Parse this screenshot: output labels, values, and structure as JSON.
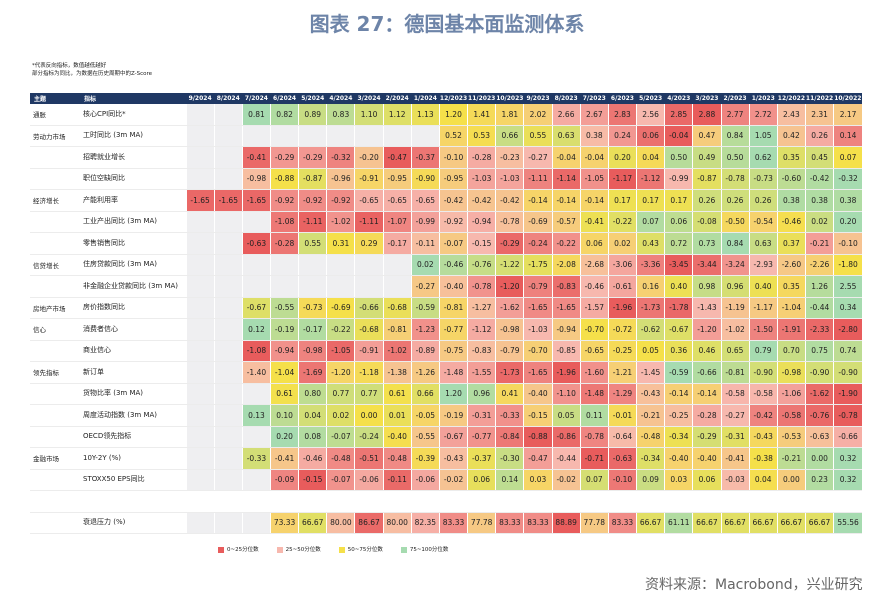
{
  "header": {
    "title": "图表 27：德国基本面监测体系"
  },
  "notes": [
    "*代表反向指标，数值越低越好",
    "部分指标为同比，为数据在历史周期中的Z-Score"
  ],
  "table": {
    "columns": [
      "主题",
      "指标"
    ],
    "dates": [
      "9/2024",
      "8/2024",
      "7/2024",
      "6/2024",
      "5/2024",
      "4/2024",
      "3/2024",
      "2/2024",
      "1/2024",
      "12/2023",
      "11/2023",
      "10/2023",
      "9/2023",
      "8/2023",
      "7/2023",
      "6/2023",
      "5/2023",
      "4/2023",
      "3/2023",
      "2/2023",
      "1/2023",
      "12/2022",
      "11/2022",
      "10/2022"
    ],
    "rows": [
      {
        "theme": "通胀",
        "indicator": "核心CPI同比*",
        "reverse": true,
        "values": [
          null,
          null,
          "0.81",
          "0.82",
          "0.89",
          "0.83",
          "1.10",
          "1.12",
          "1.13",
          "1.20",
          "1.41",
          "1.81",
          "2.02",
          "2.66",
          "2.67",
          "2.83",
          "2.56",
          "2.85",
          "2.88",
          "2.77",
          "2.72",
          "2.43",
          "2.31",
          "2.17"
        ]
      },
      {
        "theme": "劳动力市场",
        "indicator": "工时同比 (3m MA)",
        "values": [
          null,
          null,
          null,
          null,
          null,
          null,
          null,
          null,
          null,
          "0.52",
          "0.53",
          "0.66",
          "0.55",
          "0.63",
          "0.38",
          "0.24",
          "0.06",
          "-0.04",
          "0.47",
          "0.84",
          "1.05",
          "0.42",
          "0.26",
          "0.14"
        ]
      },
      {
        "theme": null,
        "indicator": "招聘就业增长",
        "values": [
          null,
          null,
          "-0.41",
          "-0.29",
          "-0.29",
          "-0.32",
          "-0.20",
          "-0.47",
          "-0.37",
          "-0.10",
          "-0.28",
          "-0.23",
          "-0.27",
          "-0.04",
          "-0.04",
          "0.20",
          "0.04",
          "0.50",
          "0.49",
          "0.50",
          "0.62",
          "0.35",
          "0.45",
          "0.07"
        ]
      },
      {
        "theme": null,
        "indicator": "职位空缺同比",
        "values": [
          null,
          null,
          "-0.98",
          "-0.88",
          "-0.87",
          "-0.96",
          "-0.91",
          "-0.95",
          "-0.90",
          "-0.95",
          "-1.03",
          "-1.03",
          "-1.11",
          "-1.14",
          "-1.05",
          "-1.17",
          "-1.12",
          "-0.99",
          "-0.87",
          "-0.78",
          "-0.73",
          "-0.60",
          "-0.42",
          "-0.32"
        ]
      },
      {
        "theme": "经济增长",
        "indicator": "产能利用率",
        "values": [
          "-1.65",
          "-1.65",
          "-1.65",
          "-0.92",
          "-0.92",
          "-0.92",
          "-0.65",
          "-0.65",
          "-0.65",
          "-0.42",
          "-0.42",
          "-0.42",
          "-0.14",
          "-0.14",
          "-0.14",
          "0.17",
          "0.17",
          "0.17",
          "0.26",
          "0.26",
          "0.26",
          "0.38",
          "0.38",
          "0.38"
        ]
      },
      {
        "theme": null,
        "indicator": "工业产出同比 (3m MA)",
        "values": [
          null,
          null,
          null,
          "-1.08",
          "-1.11",
          "-1.02",
          "-1.11",
          "-1.07",
          "-0.99",
          "-0.92",
          "-0.94",
          "-0.78",
          "-0.69",
          "-0.57",
          "-0.41",
          "-0.22",
          "0.07",
          "0.06",
          "-0.08",
          "-0.50",
          "-0.54",
          "-0.46",
          "0.02",
          "0.20"
        ]
      },
      {
        "theme": null,
        "indicator": "零售销售同比",
        "values": [
          null,
          null,
          "-0.63",
          "-0.28",
          "0.55",
          "0.31",
          "0.29",
          "-0.17",
          "-0.11",
          "-0.07",
          "-0.15",
          "-0.29",
          "-0.24",
          "-0.22",
          "0.06",
          "0.02",
          "0.43",
          "0.72",
          "0.73",
          "0.84",
          "0.63",
          "0.37",
          "-0.21",
          "-0.10"
        ]
      },
      {
        "theme": "信贷增长",
        "indicator": "住房贷款同比 (3m MA)",
        "values": [
          null,
          null,
          null,
          null,
          null,
          null,
          null,
          null,
          "0.02",
          "-0.46",
          "-0.76",
          "-1.22",
          "-1.75",
          "-2.08",
          "-2.68",
          "-3.06",
          "-3.36",
          "-3.45",
          "-3.44",
          "-3.24",
          "-2.93",
          "-2.60",
          "-2.26",
          "-1.80"
        ]
      },
      {
        "theme": null,
        "indicator": "非金融企业贷款同比 (3m MA)",
        "values": [
          null,
          null,
          null,
          null,
          null,
          null,
          null,
          null,
          "-0.27",
          "-0.40",
          "-0.78",
          "-1.20",
          "-0.79",
          "-0.83",
          "-0.46",
          "-0.61",
          "0.16",
          "0.40",
          "0.98",
          "0.96",
          "0.40",
          "0.35",
          "1.26",
          "2.55"
        ]
      },
      {
        "theme": "房地产市场",
        "indicator": "房价指数同比",
        "values": [
          null,
          null,
          "-0.67",
          "-0.55",
          "-0.73",
          "-0.69",
          "-0.66",
          "-0.68",
          "-0.59",
          "-0.81",
          "-1.27",
          "-1.62",
          "-1.65",
          "-1.65",
          "-1.57",
          "-1.96",
          "-1.73",
          "-1.78",
          "-1.43",
          "-1.19",
          "-1.17",
          "-1.04",
          "-0.44",
          "0.34"
        ]
      },
      {
        "theme": "信心",
        "indicator": "消费者信心",
        "values": [
          null,
          null,
          "0.12",
          "-0.19",
          "-0.17",
          "-0.22",
          "-0.68",
          "-0.81",
          "-1.23",
          "-0.77",
          "-1.12",
          "-0.98",
          "-1.03",
          "-0.94",
          "-0.70",
          "-0.72",
          "-0.62",
          "-0.67",
          "-1.20",
          "-1.02",
          "-1.50",
          "-1.91",
          "-2.33",
          "-2.80"
        ]
      },
      {
        "theme": null,
        "indicator": "商业信心",
        "values": [
          null,
          null,
          "-1.08",
          "-0.94",
          "-0.98",
          "-1.05",
          "-0.91",
          "-1.02",
          "-0.89",
          "-0.75",
          "-0.83",
          "-0.79",
          "-0.70",
          "-0.85",
          "-0.65",
          "-0.25",
          "0.05",
          "0.36",
          "0.46",
          "0.65",
          "0.79",
          "0.70",
          "0.75",
          "0.74"
        ]
      },
      {
        "theme": "领先指标",
        "indicator": "新订单",
        "values": [
          null,
          null,
          "-1.40",
          "-1.04",
          "-1.69",
          "-1.20",
          "-1.18",
          "-1.38",
          "-1.26",
          "-1.48",
          "-1.55",
          "-1.73",
          "-1.65",
          "-1.96",
          "-1.60",
          "-1.21",
          "-1.45",
          "-0.59",
          "-0.66",
          "-0.81",
          "-0.90",
          "-0.98",
          "-0.90",
          "-0.90"
        ]
      },
      {
        "theme": null,
        "indicator": "货物比率 (3m MA)",
        "values": [
          null,
          null,
          null,
          "0.61",
          "0.80",
          "0.77",
          "0.77",
          "0.61",
          "0.66",
          "1.20",
          "0.96",
          "0.41",
          "-0.40",
          "-1.10",
          "-1.48",
          "-1.29",
          "-0.43",
          "-0.14",
          "-0.14",
          "-0.58",
          "-0.58",
          "-1.06",
          "-1.62",
          "-1.90"
        ]
      },
      {
        "theme": null,
        "indicator": "周度活动指数 (3m MA)",
        "values": [
          null,
          null,
          "0.13",
          "0.10",
          "0.04",
          "0.02",
          "0.00",
          "0.01",
          "-0.05",
          "-0.19",
          "-0.31",
          "-0.33",
          "-0.15",
          "0.05",
          "0.11",
          "-0.01",
          "-0.21",
          "-0.25",
          "-0.28",
          "-0.27",
          "-0.42",
          "-0.58",
          "-0.76",
          "-0.78"
        ]
      },
      {
        "theme": null,
        "indicator": "OECD领先指标",
        "values": [
          null,
          null,
          null,
          "0.20",
          "0.08",
          "-0.07",
          "-0.24",
          "-0.40",
          "-0.55",
          "-0.67",
          "-0.77",
          "-0.84",
          "-0.88",
          "-0.86",
          "-0.78",
          "-0.64",
          "-0.48",
          "-0.34",
          "-0.29",
          "-0.31",
          "-0.43",
          "-0.53",
          "-0.63",
          "-0.66"
        ]
      },
      {
        "theme": "金融市场",
        "indicator": "10Y-2Y (%)",
        "values": [
          null,
          null,
          "-0.33",
          "-0.41",
          "-0.46",
          "-0.48",
          "-0.51",
          "-0.48",
          "-0.39",
          "-0.43",
          "-0.37",
          "-0.30",
          "-0.47",
          "-0.44",
          "-0.71",
          "-0.63",
          "-0.34",
          "-0.40",
          "-0.40",
          "-0.41",
          "-0.38",
          "-0.21",
          "0.00",
          "0.32"
        ]
      },
      {
        "theme": null,
        "indicator": "STOXX50 EPS同比",
        "values": [
          null,
          null,
          null,
          "-0.09",
          "-0.15",
          "-0.07",
          "-0.06",
          "-0.11",
          "-0.06",
          "-0.02",
          "0.06",
          "0.14",
          "0.03",
          "-0.02",
          "0.07",
          "-0.10",
          "0.09",
          "0.03",
          "0.06",
          "-0.03",
          "0.04",
          "0.00",
          "0.23",
          "0.32"
        ]
      },
      {
        "theme": null,
        "indicator": null,
        "values": [
          null,
          null,
          null,
          null,
          null,
          null,
          null,
          null,
          null,
          null,
          null,
          null,
          null,
          null,
          null,
          null,
          null,
          null,
          null,
          null,
          null,
          null,
          null,
          null
        ]
      },
      {
        "theme": null,
        "indicator": "衰退压力 (%)",
        "reverse": true,
        "values": [
          null,
          null,
          null,
          "73.33",
          "66.67",
          "80.00",
          "86.67",
          "80.00",
          "82.35",
          "83.33",
          "77.78",
          "83.33",
          "83.33",
          "88.89",
          "77.78",
          "83.33",
          "66.67",
          "61.11",
          "66.67",
          "66.67",
          "66.67",
          "66.67",
          "66.67",
          "55.56"
        ]
      }
    ]
  },
  "legend": [
    {
      "label": "0~25分位数",
      "color": "#e85c5c"
    },
    {
      "label": "25~50分位数",
      "color": "#f7b8ae"
    },
    {
      "label": "50~75分位数",
      "color": "#f5e04a"
    },
    {
      "label": "75~100分位数",
      "color": "#a6dbb0"
    }
  ],
  "source": "资料来源：Macrobond，兴业研究"
}
